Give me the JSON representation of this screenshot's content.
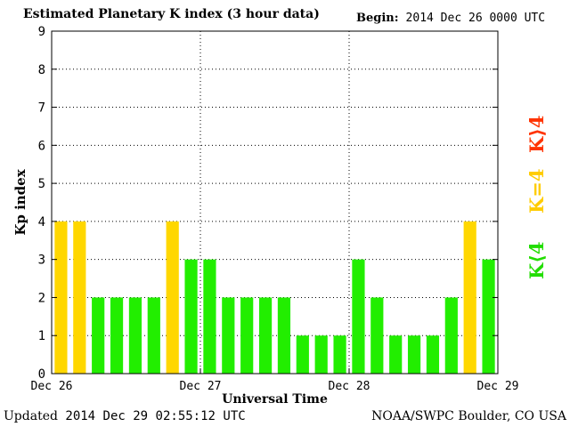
{
  "header": {
    "title": "Estimated Planetary K index (3 hour data)",
    "begin_label": "Begin:",
    "begin_value": "2014 Dec 26 0000 UTC"
  },
  "legend": {
    "below": {
      "label": "K⟨4",
      "color": "#22dd00"
    },
    "equal": {
      "label": "K=4",
      "color": "#ffcc00"
    },
    "above": {
      "label": "K⟩4",
      "color": "#ff3300"
    }
  },
  "footer": {
    "updated_label": "Updated",
    "updated_value": "2014 Dec 29 02:55:12 UTC",
    "source": "NOAA/SWPC Boulder, CO USA"
  },
  "chart_data": {
    "type": "bar",
    "ylabel": "Kp index",
    "xlabel": "Universal Time",
    "ylim": [
      0,
      9
    ],
    "yticks": [
      "0",
      "1",
      "2",
      "3",
      "4",
      "5",
      "6",
      "7",
      "8",
      "9"
    ],
    "xtick_labels": [
      "Dec 26",
      "Dec 27",
      "Dec 28",
      "Dec 29"
    ],
    "grid": true,
    "values": [
      4,
      4,
      2,
      2,
      2,
      2,
      4,
      3,
      3,
      2,
      2,
      2,
      2,
      1,
      1,
      1,
      3,
      2,
      1,
      1,
      1,
      2,
      4,
      3
    ],
    "colors": {
      "below": "#22ee00",
      "equal": "#ffd700",
      "above": "#ff3300"
    }
  }
}
